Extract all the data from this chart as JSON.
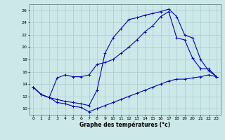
{
  "xlabel": "Graphe des températures (°c)",
  "background_color": "#cce8e8",
  "grid_color": "#aacccc",
  "line_color": "#0000cc",
  "xlim": [
    -0.5,
    23.5
  ],
  "ylim": [
    9.0,
    27.0
  ],
  "xticks": [
    0,
    1,
    2,
    3,
    4,
    5,
    6,
    7,
    8,
    9,
    10,
    11,
    12,
    13,
    14,
    15,
    16,
    17,
    18,
    19,
    20,
    21,
    22,
    23
  ],
  "yticks": [
    10,
    12,
    14,
    16,
    18,
    20,
    22,
    24,
    26
  ],
  "curve1_min": {
    "x": [
      0,
      1,
      2,
      3,
      4,
      5,
      6,
      7,
      8,
      9,
      10,
      11,
      12,
      13,
      14,
      15,
      16,
      17,
      18,
      19,
      20,
      21,
      22,
      23
    ],
    "y": [
      13.5,
      12.3,
      11.8,
      11.0,
      10.8,
      10.4,
      10.2,
      9.5,
      10.0,
      10.5,
      11.0,
      11.5,
      12.0,
      12.5,
      13.0,
      13.5,
      14.0,
      14.5,
      14.8,
      14.8,
      15.0,
      15.2,
      15.5,
      15.2
    ]
  },
  "curve2_max": {
    "x": [
      0,
      1,
      2,
      3,
      4,
      5,
      6,
      7,
      8,
      9,
      10,
      11,
      12,
      13,
      14,
      15,
      16,
      17,
      18,
      19,
      20,
      21,
      22,
      23
    ],
    "y": [
      13.5,
      12.3,
      11.8,
      11.5,
      11.2,
      11.0,
      10.8,
      10.5,
      13.0,
      19.0,
      21.5,
      23.0,
      24.5,
      24.8,
      25.2,
      25.5,
      25.8,
      26.2,
      25.0,
      22.0,
      21.5,
      18.0,
      16.2,
      15.2
    ]
  },
  "curve3_mid": {
    "x": [
      0,
      1,
      2,
      3,
      4,
      5,
      6,
      7,
      8,
      9,
      10,
      11,
      12,
      13,
      14,
      15,
      16,
      17,
      18,
      19,
      20,
      21,
      22,
      23
    ],
    "y": [
      13.5,
      12.3,
      11.8,
      15.0,
      15.5,
      15.2,
      15.2,
      15.5,
      17.2,
      17.5,
      18.0,
      19.0,
      20.0,
      21.2,
      22.5,
      23.5,
      25.0,
      25.8,
      21.5,
      21.2,
      18.2,
      16.5,
      16.5,
      15.2
    ]
  }
}
